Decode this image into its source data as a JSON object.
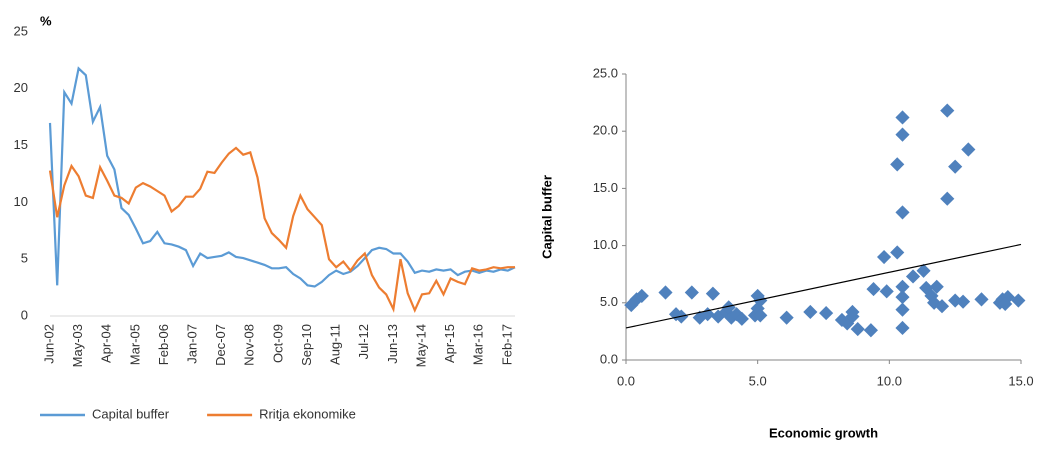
{
  "chart_data": [
    {
      "type": "line",
      "ylabel": "%",
      "categories": [
        "Jun-02",
        null,
        null,
        null,
        "May-03",
        null,
        null,
        null,
        "Apr-04",
        null,
        null,
        null,
        "Mar-05",
        null,
        null,
        null,
        "Feb-06",
        null,
        null,
        null,
        "Jan-07",
        null,
        null,
        null,
        "Dec-07",
        null,
        null,
        null,
        "Nov-08",
        null,
        null,
        null,
        "Oct-09",
        null,
        null,
        null,
        "Sep-10",
        null,
        null,
        null,
        "Aug-11",
        null,
        null,
        null,
        "Jul-12",
        null,
        null,
        null,
        "Jun-13",
        null,
        null,
        null,
        "May-14",
        null,
        null,
        null,
        "Apr-15",
        null,
        null,
        null,
        "Mar-16",
        null,
        null,
        null,
        "Feb-17",
        null
      ],
      "series": [
        {
          "name": "Capital buffer",
          "color": "#5b9bd5",
          "values": [
            17,
            2.7,
            19.7,
            18.7,
            21.8,
            21.2,
            17.1,
            18.4,
            14.1,
            12.9,
            9.5,
            8.9,
            7.7,
            6.4,
            6.6,
            7.4,
            6.4,
            6.3,
            6.1,
            5.8,
            4.4,
            5.5,
            5.1,
            5.2,
            5.3,
            5.6,
            5.2,
            5.1,
            4.9,
            4.7,
            4.5,
            4.2,
            4.2,
            4.3,
            3.7,
            3.3,
            2.7,
            2.6,
            3.0,
            3.6,
            4.0,
            3.7,
            3.9,
            4.4,
            5.1,
            5.8,
            6.0,
            5.9,
            5.5,
            5.5,
            4.8,
            3.8,
            4.0,
            3.9,
            4.1,
            4.0,
            4.1,
            3.6,
            3.9,
            4.0,
            3.8,
            4.0,
            3.9,
            4.1,
            4.0,
            4.3
          ]
        },
        {
          "name": "Rritja ekonomike",
          "color": "#ed7d31",
          "values": [
            12.8,
            8.7,
            11.5,
            13.2,
            12.3,
            10.6,
            10.4,
            13.1,
            11.9,
            10.6,
            10.4,
            9.9,
            11.3,
            11.7,
            11.4,
            11.0,
            10.6,
            9.2,
            9.7,
            10.5,
            10.5,
            11.2,
            12.7,
            12.6,
            13.5,
            14.3,
            14.8,
            14.2,
            14.4,
            12.2,
            8.6,
            7.3,
            6.7,
            6.0,
            8.8,
            10.6,
            9.4,
            8.7,
            8.0,
            5.0,
            4.3,
            4.8,
            4.0,
            4.9,
            5.5,
            3.6,
            2.5,
            1.9,
            0.6,
            5.0,
            2.0,
            0.5,
            1.9,
            2.0,
            3.1,
            1.9,
            3.3,
            3.0,
            2.8,
            4.2,
            4.0,
            4.1,
            4.3,
            4.2,
            4.3,
            4.3
          ]
        }
      ],
      "ylim": [
        0,
        25
      ],
      "yticks": [
        0,
        5,
        10,
        15,
        20,
        25
      ],
      "grid": false,
      "legend": "bottom"
    },
    {
      "type": "scatter",
      "xlabel": "Economic growth",
      "ylabel": "Capital buffer",
      "x": [
        0.2,
        0.4,
        0.6,
        1.5,
        1.9,
        2.1,
        2.5,
        2.8,
        3.1,
        3.3,
        3.5,
        3.8,
        3.9,
        4.0,
        4.2,
        4.4,
        4.9,
        5.0,
        5.0,
        5.1,
        5.1,
        6.1,
        7.0,
        7.6,
        8.2,
        8.4,
        8.6,
        8.6,
        8.8,
        9.3,
        9.4,
        9.8,
        9.9,
        10.3,
        10.3,
        10.5,
        10.5,
        10.5,
        10.5,
        10.5,
        10.5,
        10.5,
        10.9,
        11.3,
        11.4,
        11.6,
        11.7,
        11.8,
        12.0,
        12.2,
        12.2,
        12.5,
        12.5,
        12.8,
        13.0,
        13.5,
        14.2,
        14.3,
        14.5,
        14.4,
        14.9
      ],
      "y": [
        4.8,
        5.3,
        5.6,
        5.9,
        4.0,
        3.8,
        5.9,
        3.7,
        4.0,
        5.8,
        3.8,
        4.2,
        4.6,
        3.7,
        4.0,
        3.6,
        3.9,
        5.6,
        4.5,
        5.2,
        3.9,
        3.7,
        4.2,
        4.1,
        3.5,
        3.2,
        3.8,
        4.2,
        2.7,
        2.6,
        6.2,
        9.0,
        6.0,
        9.4,
        17.1,
        21.2,
        19.7,
        12.9,
        6.4,
        5.5,
        4.4,
        2.8,
        7.3,
        7.8,
        6.3,
        5.6,
        5.0,
        6.4,
        4.7,
        21.8,
        14.1,
        16.9,
        5.2,
        5.1,
        18.4,
        5.3,
        5.0,
        5.3,
        5.5,
        4.9,
        5.2
      ],
      "color": "#4f81bd",
      "trendline": {
        "x": [
          0,
          15
        ],
        "y": [
          2.8,
          10.1
        ],
        "color": "#000000"
      },
      "xlim": [
        0,
        15
      ],
      "xticks": [
        {
          "value": 0,
          "label": "0.0"
        },
        {
          "value": 5,
          "label": "5.0"
        },
        {
          "value": 10,
          "label": "10.0"
        },
        {
          "value": 15,
          "label": "15.0"
        }
      ],
      "ylim": [
        0,
        25
      ],
      "yticks": [
        {
          "value": 0,
          "label": "0.0"
        },
        {
          "value": 5,
          "label": "5.0"
        },
        {
          "value": 10,
          "label": "10.0"
        },
        {
          "value": 15,
          "label": "15.0"
        },
        {
          "value": 20,
          "label": "20.0"
        },
        {
          "value": 25,
          "label": "25.0"
        }
      ],
      "grid": false
    }
  ]
}
